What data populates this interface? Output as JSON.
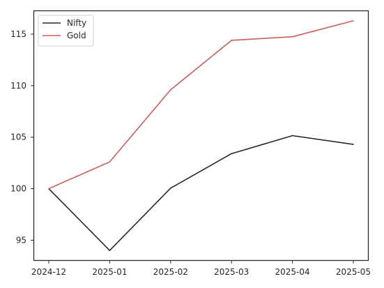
{
  "chart_data": {
    "type": "line",
    "title": "",
    "xlabel": "",
    "ylabel": "",
    "x": [
      "2024-12",
      "2025-01",
      "2025-02",
      "2025-03",
      "2025-04",
      "2025-05"
    ],
    "xlim": [
      "2024-12",
      "2025-05"
    ],
    "ylim": [
      93,
      117.3
    ],
    "yticks": [
      95,
      100,
      105,
      110,
      115
    ],
    "grid": false,
    "legend_position": "top-left",
    "series": [
      {
        "name": "Nifty",
        "color": "#262626",
        "values": [
          100.0,
          94.0,
          100.05,
          103.4,
          105.15,
          104.3
        ]
      },
      {
        "name": "Gold",
        "color": "#cd5c5c",
        "values": [
          100.0,
          102.6,
          109.6,
          114.4,
          114.75,
          116.3
        ]
      }
    ]
  }
}
